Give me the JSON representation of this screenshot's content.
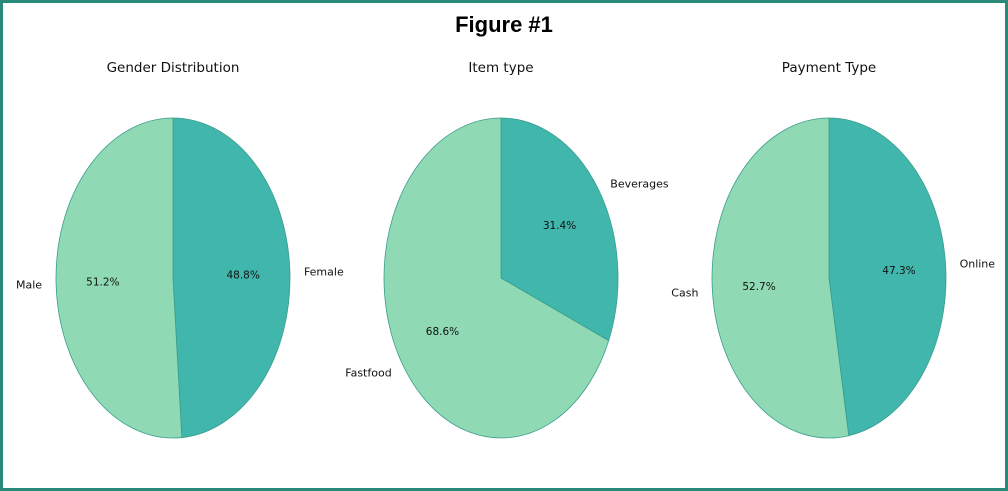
{
  "figure": {
    "title": "Figure #1"
  },
  "colors": {
    "light": "#8fdab4",
    "dark": "#41b6ad",
    "edge": "#ffffff",
    "frame": "#2a8a7a"
  },
  "chart_data": [
    {
      "type": "pie",
      "title": "Gender Distribution",
      "slices": [
        {
          "label": "Female",
          "value": 48.8,
          "pct_text": "48.8%",
          "color": "#41b6ad"
        },
        {
          "label": "Male",
          "value": 51.2,
          "pct_text": "51.2%",
          "color": "#8fdab4"
        }
      ]
    },
    {
      "type": "pie",
      "title": "Item type",
      "slices": [
        {
          "label": "Beverages",
          "value": 31.4,
          "pct_text": "31.4%",
          "color": "#41b6ad"
        },
        {
          "label": "Fastfood",
          "value": 68.6,
          "pct_text": "68.6%",
          "color": "#8fdab4"
        }
      ]
    },
    {
      "type": "pie",
      "title": "Payment Type",
      "slices": [
        {
          "label": "Online",
          "value": 47.3,
          "pct_text": "47.3%",
          "color": "#41b6ad"
        },
        {
          "label": "Cash",
          "value": 52.7,
          "pct_text": "52.7%",
          "color": "#8fdab4"
        }
      ]
    }
  ]
}
